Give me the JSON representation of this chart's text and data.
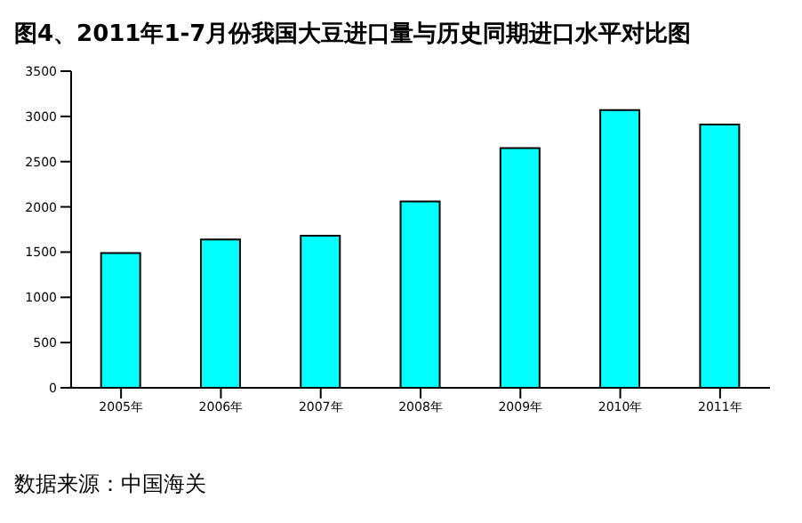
{
  "chart_data": {
    "type": "bar",
    "title": "图4、2011年1-7月份我国大豆进口量与历史同期进口水平对比图",
    "categories": [
      "2005年",
      "2006年",
      "2007年",
      "2008年",
      "2009年",
      "2010年",
      "2011年"
    ],
    "values": [
      1490,
      1640,
      1680,
      2060,
      2650,
      3070,
      2910
    ],
    "color": "#00ffff",
    "ylim": [
      0,
      3500
    ],
    "yticks": [
      0,
      500,
      1000,
      1500,
      2000,
      2500,
      3000,
      3500
    ],
    "grid": false,
    "legend": false,
    "annotations": [
      "数据来源：中国海关"
    ]
  }
}
